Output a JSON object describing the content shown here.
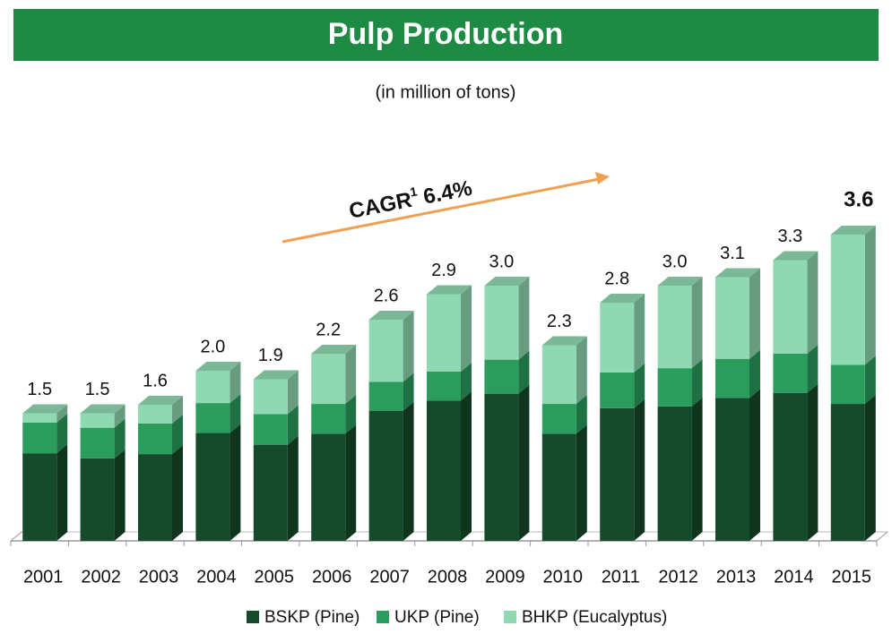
{
  "chart_data": {
    "type": "bar3d_stacked",
    "title": "Pulp Production",
    "subtitle": "(in million of tons)",
    "annotation": "CAGR",
    "annotation_sup": "1",
    "annotation_value": "6.4%",
    "categories": [
      "2001",
      "2002",
      "2003",
      "2004",
      "2005",
      "2006",
      "2007",
      "2008",
      "2009",
      "2010",
      "2011",
      "2012",
      "2013",
      "2014",
      "2015"
    ],
    "series": [
      {
        "name": "BSKP (Pine)",
        "color": "#154a2a",
        "values": [
          1.03,
          0.97,
          1.02,
          1.27,
          1.13,
          1.26,
          1.53,
          1.65,
          1.73,
          1.26,
          1.56,
          1.58,
          1.68,
          1.74,
          1.61
        ]
      },
      {
        "name": "UKP (Pine)",
        "color": "#2a9d5c",
        "values": [
          0.36,
          0.36,
          0.36,
          0.35,
          0.36,
          0.35,
          0.34,
          0.34,
          0.4,
          0.35,
          0.42,
          0.45,
          0.46,
          0.46,
          0.46
        ]
      },
      {
        "name": "BHKP (Eucalyptus)",
        "color": "#8fd9b2",
        "values": [
          0.11,
          0.17,
          0.22,
          0.38,
          0.41,
          0.59,
          0.73,
          0.91,
          0.87,
          0.69,
          0.82,
          0.97,
          0.96,
          1.1,
          1.53
        ]
      }
    ],
    "totals": [
      1.5,
      1.5,
      1.6,
      2.0,
      1.9,
      2.2,
      2.6,
      2.9,
      3.0,
      2.3,
      2.8,
      3.0,
      3.1,
      3.3,
      3.6
    ],
    "totals_labels": [
      "1.5",
      "1.5",
      "1.6",
      "2.0",
      "1.9",
      "2.2",
      "2.6",
      "2.9",
      "3.0",
      "2.3",
      "2.8",
      "3.0",
      "3.1",
      "3.3",
      "3.6"
    ],
    "highlight_last": true,
    "ylim": [
      0,
      4
    ],
    "legend": "bottom"
  }
}
